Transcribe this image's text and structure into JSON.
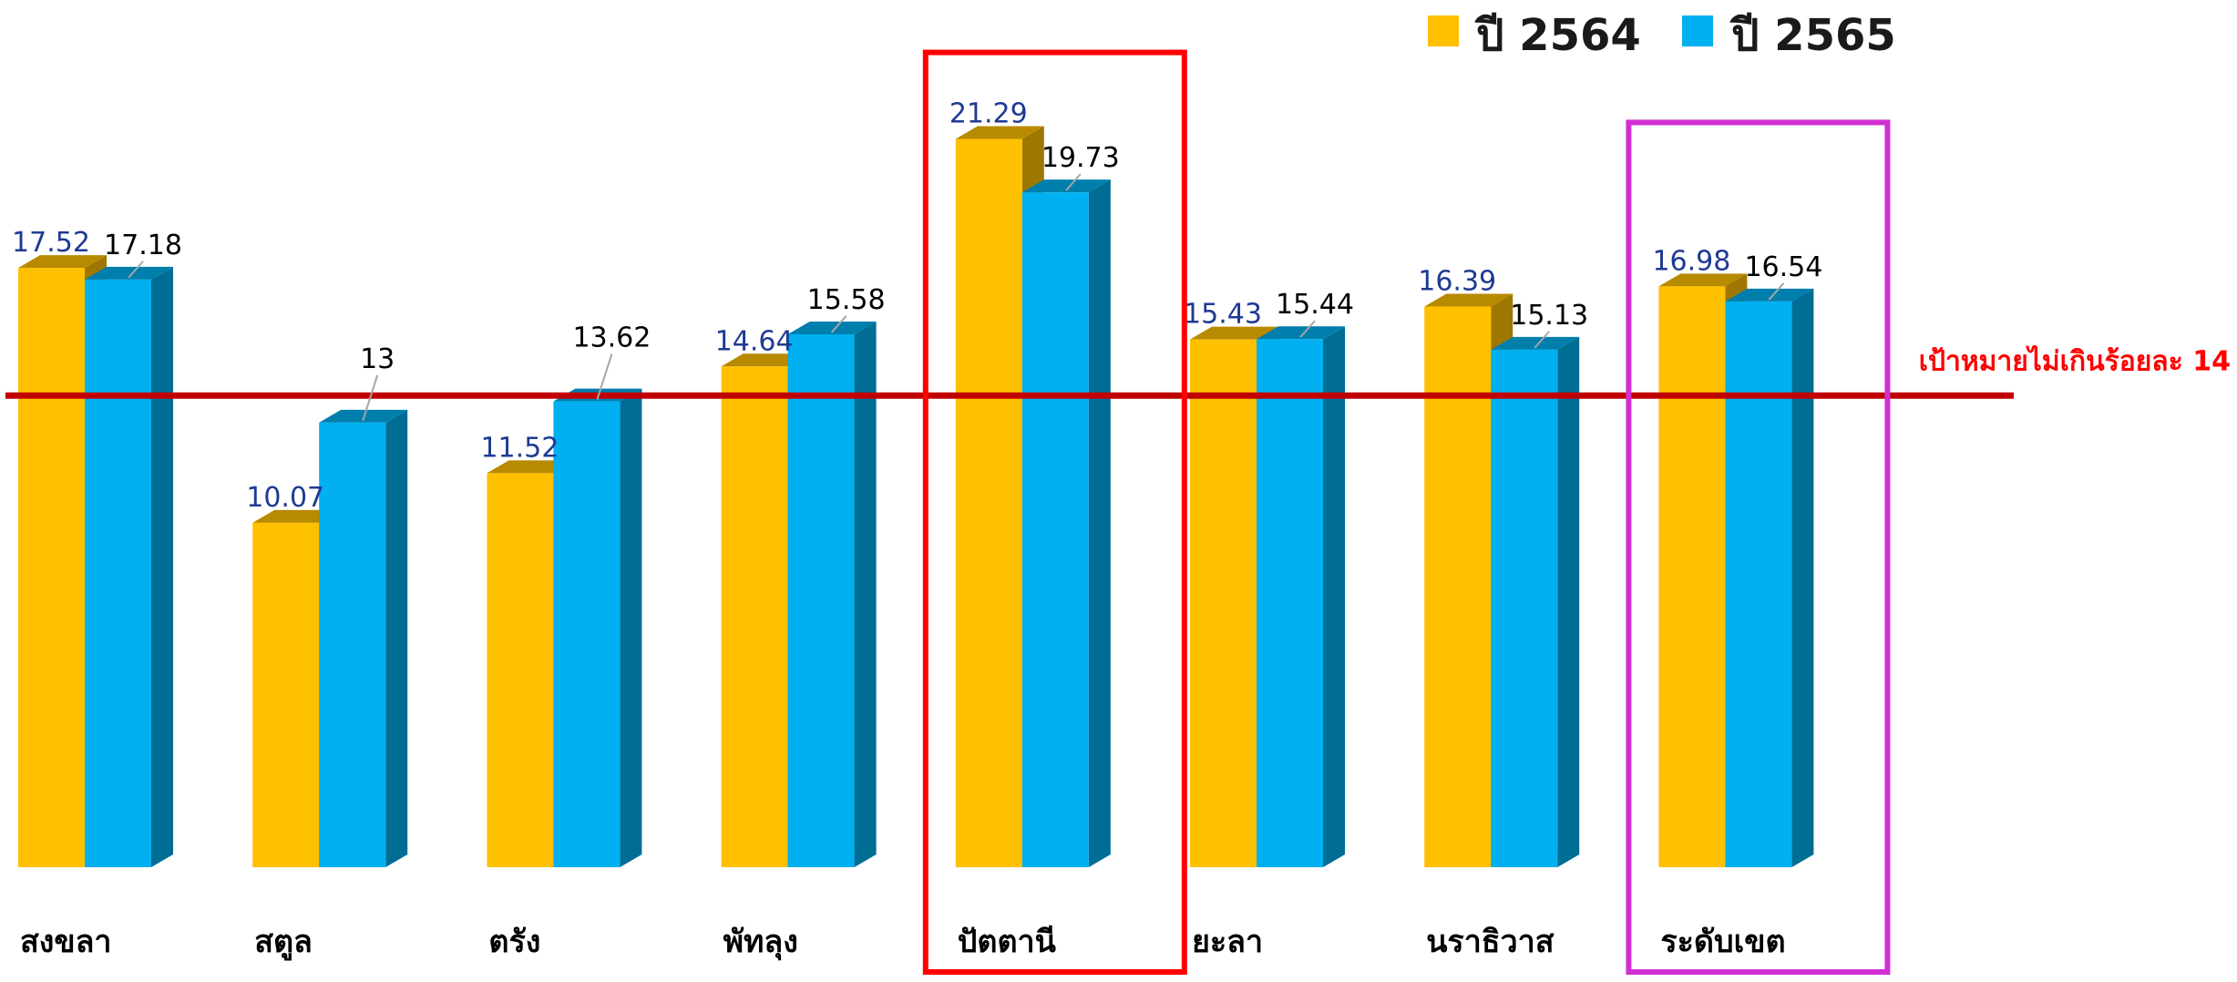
{
  "chart_data": {
    "type": "bar",
    "categories": [
      "สงขลา",
      "สตูล",
      "ตรัง",
      "พัทลุง",
      "ปัตตานี",
      "ยะลา",
      "นราธิวาส",
      "ระดับเขต"
    ],
    "series": [
      {
        "name": "ปี 2564",
        "values": [
          17.52,
          10.07,
          11.52,
          14.64,
          21.29,
          15.43,
          16.39,
          16.98
        ],
        "color": "#FFC000",
        "label_color": "#1F3A93"
      },
      {
        "name": "ปี 2565",
        "values": [
          17.18,
          13,
          13.62,
          15.58,
          19.73,
          15.44,
          15.13,
          16.54
        ],
        "color": "#00B0F0",
        "label_color": "#000000"
      }
    ],
    "data_labels": {
      "s0": [
        "17.52",
        "10.07",
        "11.52",
        "14.64",
        "21.29",
        "15.43",
        "16.39",
        "16.98"
      ],
      "s1": [
        "17.18",
        "13",
        "13.62",
        "15.58",
        "19.73",
        "15.44",
        "15.13",
        "16.54"
      ]
    },
    "target_line": {
      "value": 14,
      "label": "เป้าหมายไม่เกินร้อยละ 14",
      "color": "#C00000",
      "label_color": "#FF0000"
    },
    "highlight_boxes": [
      {
        "category": "ปัตตานี",
        "color": "#FF0000"
      },
      {
        "category": "ระดับเขต",
        "color": "#D22FD2"
      }
    ],
    "legend_position": "top-right",
    "ylim": [
      0,
      24
    ],
    "grid": false,
    "bar_style": "3d"
  }
}
